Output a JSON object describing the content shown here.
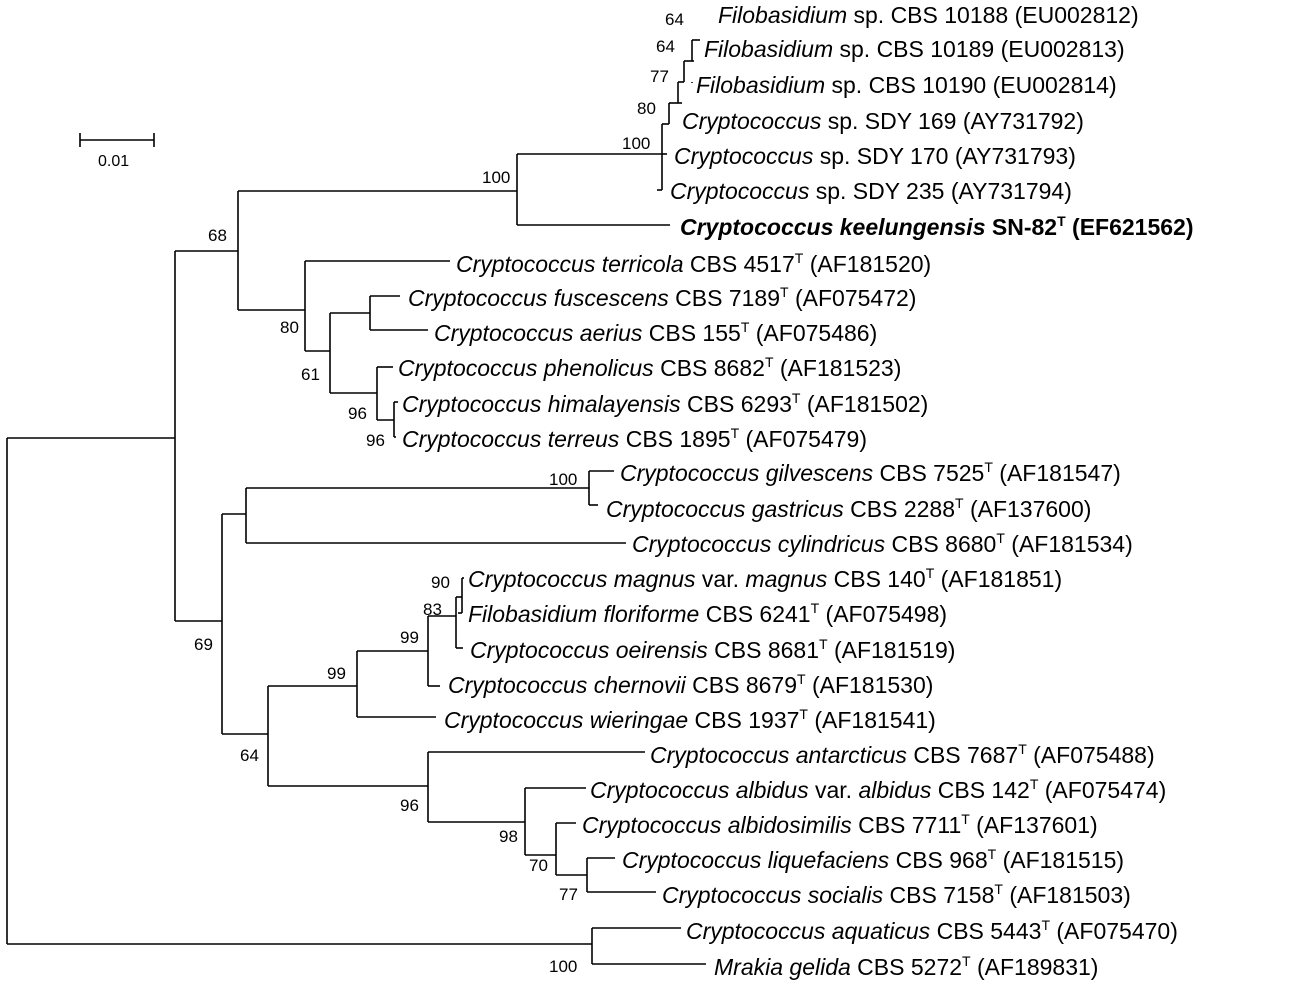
{
  "scale_bar": {
    "label": "0.01"
  },
  "taxa": [
    {
      "genus": "Filobasidium",
      "rest": " sp. CBS 10188 (EU002812)"
    },
    {
      "genus": "Filobasidium",
      "rest": " sp. CBS 10189 (EU002813)"
    },
    {
      "genus": "Filobasidium",
      "rest": " sp. CBS 10190 (EU002814)"
    },
    {
      "genus": "Cryptococcus",
      "rest": " sp. SDY 169 (AY731792)"
    },
    {
      "genus": "Cryptococcus",
      "rest": " sp. SDY 170 (AY731793)"
    },
    {
      "genus": "Cryptococcus",
      "rest": " sp. SDY 235 (AY731794)"
    },
    {
      "genus": "Cryptococcus keelungensis",
      "rest": " SN-82",
      "sup": "T",
      "tail": " (EF621562)",
      "bold": true
    },
    {
      "genus": "Cryptococcus terricola",
      "rest": " CBS 4517",
      "sup": "T",
      "tail": " (AF181520)"
    },
    {
      "genus": "Cryptococcus fuscescens",
      "rest": " CBS 7189",
      "sup": "T",
      "tail": " (AF075472)"
    },
    {
      "genus": "Cryptococcus aerius",
      "rest": " CBS 155",
      "sup": "T",
      "tail": " (AF075486)"
    },
    {
      "genus": "Cryptococcus phenolicus",
      "rest": " CBS 8682",
      "sup": "T",
      "tail": "  (AF181523)"
    },
    {
      "genus": "Cryptococcus himalayensis",
      "rest": " CBS 6293",
      "sup": "T",
      "tail": " (AF181502)"
    },
    {
      "genus": "Cryptococcus terreus",
      "rest": " CBS 1895",
      "sup": "T",
      "tail": " (AF075479)"
    },
    {
      "genus": "Cryptococcus gilvescens",
      "rest": " CBS 7525",
      "sup": "T",
      "tail": " (AF181547)"
    },
    {
      "genus": "Cryptococcus gastricus",
      "rest": " CBS 2288",
      "sup": "T",
      "tail": " (AF137600)"
    },
    {
      "genus": "Cryptococcus cylindricus",
      "rest": " CBS 8680",
      "sup": "T",
      "tail": " (AF181534)"
    },
    {
      "genus": "Cryptococcus magnus",
      "rest": " var. ",
      "genus2": "magnus",
      "rest2": " CBS 140",
      "sup": "T",
      "tail": " (AF181851)"
    },
    {
      "genus": "Filobasidium floriforme",
      "rest": " CBS 6241",
      "sup": "T",
      "tail": " (AF075498)"
    },
    {
      "genus": "Cryptococcus oeirensis",
      "rest": " CBS 8681",
      "sup": "T",
      "tail": " (AF181519)"
    },
    {
      "genus": "Cryptococcus chernovii",
      "rest": " CBS 8679",
      "sup": "T",
      "tail": " (AF181530)"
    },
    {
      "genus": "Cryptococcus wieringae",
      "rest": " CBS 1937",
      "sup": "T",
      "tail": " (AF181541)"
    },
    {
      "genus": "Cryptococcus antarcticus",
      "rest": " CBS 7687",
      "sup": "T",
      "tail": " (AF075488)"
    },
    {
      "genus": "Cryptococcus albidus",
      "rest": " var. ",
      "genus2": "albidus",
      "rest2": " CBS 142",
      "sup": "T",
      "tail": " (AF075474)"
    },
    {
      "genus": "Cryptococcus albidosimilis",
      "rest": " CBS 7711",
      "sup": "T",
      "tail": " (AF137601)"
    },
    {
      "genus": "Cryptococcus liquefaciens",
      "rest": " CBS 968",
      "sup": "T",
      "tail": " (AF181515)"
    },
    {
      "genus": "Cryptococcus socialis",
      "rest": " CBS 7158",
      "sup": "T",
      "tail": " (AF181503)"
    },
    {
      "genus": "Cryptococcus aquaticus",
      "rest": " CBS 5443",
      "sup": "T",
      "tail": " (AF075470)"
    },
    {
      "genus": "Mrakia gelida",
      "rest": " CBS 5272",
      "sup": "T",
      "tail": " (AF189831)"
    }
  ],
  "bootstrap": [
    "64",
    "64",
    "77",
    "80",
    "100",
    "100",
    "68",
    "80",
    "61",
    "96",
    "96",
    "100",
    "99",
    "99",
    "83",
    "90",
    "69",
    "64",
    "96",
    "98",
    "70",
    "77",
    "100"
  ]
}
